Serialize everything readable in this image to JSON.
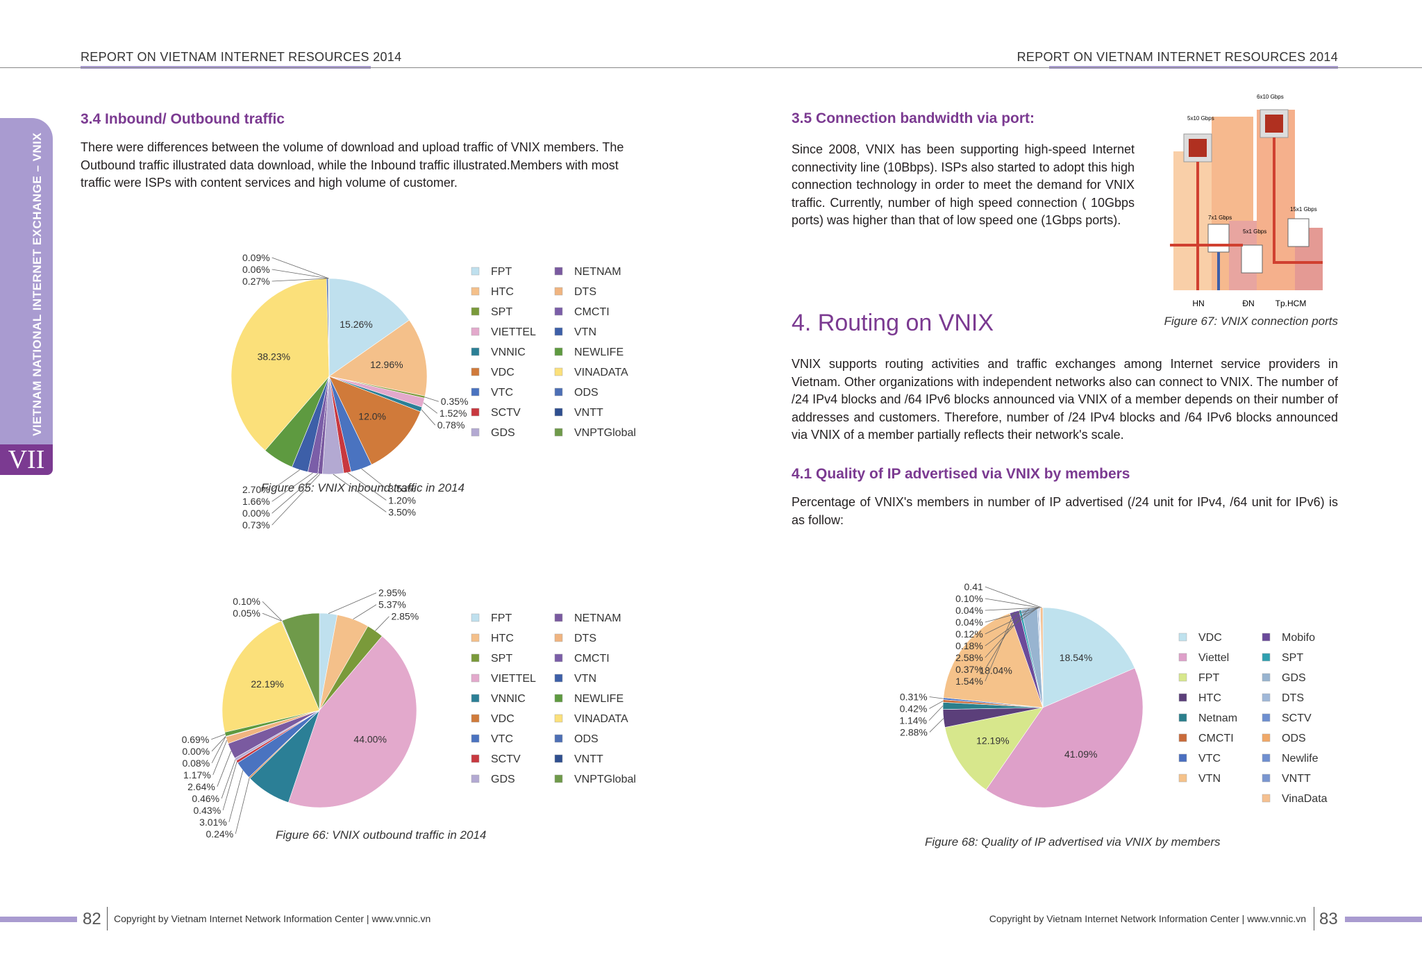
{
  "header": {
    "left": "REPORT ON  VIETNAM INTERNET  RESOURCES 2014",
    "right": "REPORT ON  VIETNAM INTERNET  RESOURCES 2014"
  },
  "sidebar": {
    "title": "VIETNAM NATIONAL INTERNET EXCHANGE – VNIX",
    "chapter": "VII"
  },
  "left_page": {
    "heading": "3.4 Inbound/ Outbound traffic",
    "paragraph": "There were differences between the volume of download and upload traffic of VNIX members. The Outbound traffic illustrated data download, while the Inbound traffic illustrated.Members with most traffic were ISPs with content services and high volume of customer.",
    "figure_65_caption": "Figure 65: VNIX inbound traffic in 2014",
    "figure_66_caption": "Figure 66:  VNIX outbound traffic in 2014"
  },
  "right_page": {
    "heading_35": "3.5 Connection bandwidth via port:",
    "paragraph_35": "Since 2008, VNIX has been supporting high-speed Internet connectivity line (10Bbps). ISPs also started to adopt this high connection technology in order to meet the demand for VNIX traffic. Currently, number  of high speed connection ( 10Gbps ports) was higher than that of low speed one (1Gbps ports).",
    "figure_67_caption": "Figure 67: VNIX connection ports",
    "heading_4": "4. Routing on VNIX",
    "paragraph_4": "VNIX supports routing activities and traffic exchanges among Internet service providers in Vietnam. Other organizations with independent networks also can connect to VNIX. The number of /24 IPv4 blocks and /64 IPv6 blocks announced via VNIX of a member depends on their number of addresses and customers. Therefore, number of /24 IPv4 blocks and /64 IPv6 blocks announced via VNIX of a member partially reflects their network's scale.",
    "heading_41": "4.1 Quality of IP advertised via VNIX by members",
    "paragraph_41": "Percentage of VNIX's members in number of IP advertised (/24 unit for IPv4, /64 unit for IPv6) is as follow:",
    "figure_68_caption": "Figure 68: Quality of IP advertised via VNIX by members"
  },
  "diagram": {
    "ports": [
      "5x10 Gbps",
      "6x10 Gbps",
      "7x1 Gbps",
      "5x1 Gbps",
      "15x1 Gbps"
    ],
    "cities": [
      "HN",
      "ĐN",
      "Tp.HCM"
    ]
  },
  "footer": {
    "left_page_number": "82",
    "left_copyright": "Copyright by Vietnam Internet Network Information Center  | www.vnnic.vn",
    "right_copyright": "Copyright by Vietnam Internet Network Information Center  | www.vnnic.vn",
    "right_page_number": "83"
  },
  "chart_data": [
    {
      "type": "pie",
      "categories": [
        "FPT",
        "HTC",
        "SPT",
        "VIETTEL",
        "VNNIC",
        "VDC",
        "VTC",
        "SCTV",
        "GDS",
        "NETNAM",
        "DTS",
        "CMCTI",
        "VTN",
        "NEWLIFE",
        "VINADATA",
        "ODS",
        "VNTT",
        "VNPTGlobal"
      ],
      "values": [
        15.26,
        12.96,
        0.35,
        1.52,
        0.78,
        12.0,
        3.53,
        1.2,
        3.5,
        0.73,
        0.0,
        1.66,
        2.7,
        5.16,
        38.23,
        0.27,
        0.06,
        0.09
      ],
      "value_labels": [
        "15.26%",
        "12.96%",
        "0.35%",
        "1.52%",
        "0.78%",
        "12.0%",
        "3.53%",
        "1.20%",
        "3.50%",
        "0.73%",
        "0.00%",
        "1.66%",
        "2.70%",
        null,
        "38.23%",
        "0.27%",
        "0.06%",
        "0.09%"
      ],
      "colors": [
        "#bfe0ee",
        "#f4c08a",
        "#7a9a3a",
        "#e3a9cc",
        "#2b7f96",
        "#d07a3a",
        "#4a73c0",
        "#c8383f",
        "#b3a9d2",
        "#7a5aa0",
        "#f0b480",
        "#7b5ea8",
        "#3d5fa8",
        "#5e9a40",
        "#fbe07a",
        "#4d6fb5",
        "#2f4f8f",
        "#6f9a4a"
      ]
    },
    {
      "type": "pie",
      "categories": [
        "FPT",
        "HTC",
        "SPT",
        "VIETTEL",
        "VNNIC",
        "VDC",
        "VTC",
        "SCTV",
        "GDS",
        "NETNAM",
        "DTS",
        "CMCTI",
        "VTN",
        "NEWLIFE",
        "VINADATA",
        "ODS",
        "VNTT",
        "VNPTGlobal"
      ],
      "values": [
        2.95,
        5.37,
        2.85,
        44.0,
        7.5,
        0.24,
        3.01,
        0.43,
        0.46,
        2.64,
        1.17,
        0.08,
        0.0,
        0.69,
        22.19,
        0.05,
        0.1,
        6.27
      ],
      "value_labels": [
        "2.95%",
        "5.37%",
        "2.85%",
        "44.00%",
        null,
        "0.24%",
        "3.01%",
        "0.43%",
        "0.46%",
        "2.64%",
        "1.17%",
        "0.08%",
        "0.00%",
        "0.69%",
        "22.19%",
        "0.05%",
        "0.10%",
        null
      ],
      "colors": [
        "#bfe0ee",
        "#f4c08a",
        "#7a9a3a",
        "#e3a9cc",
        "#2b7f96",
        "#d07a3a",
        "#4a73c0",
        "#c8383f",
        "#b3a9d2",
        "#7a5aa0",
        "#f0b480",
        "#7b5ea8",
        "#3d5fa8",
        "#5e9a40",
        "#fbe07a",
        "#4d6fb5",
        "#2f4f8f",
        "#6f9a4a"
      ]
    },
    {
      "type": "pie",
      "categories": [
        "VDC",
        "Viettel",
        "FPT",
        "HTC",
        "Netnam",
        "CMCTI",
        "VTC",
        "VTN",
        "Mobifo",
        "SPT",
        "GDS",
        "DTS",
        "SCTV",
        "ODS",
        "Newlife",
        "VNTT",
        "VinaData"
      ],
      "values": [
        18.54,
        41.09,
        12.19,
        2.88,
        1.14,
        0.42,
        0.31,
        18.04,
        1.54,
        0.37,
        2.58,
        0.18,
        0.12,
        0.04,
        0.04,
        0.1,
        0.41
      ],
      "value_labels": [
        "18.54%",
        "41.09%",
        "12.19%",
        "2.88%",
        "1.14%",
        "0.42%",
        "0.31%",
        "18.04%",
        "1.54%",
        "0.37%",
        "2.58%",
        "0.18%",
        "0.12%",
        "0.04%",
        "0.04%",
        "0.10%",
        "0.41"
      ],
      "colors": [
        "#bfe2ee",
        "#dea0c9",
        "#d7e78c",
        "#5b3f7a",
        "#2b7f8c",
        "#c96b3a",
        "#4a6fc0",
        "#f5c28a",
        "#6b4a9a",
        "#2fa0b0",
        "#98b4d0",
        "#a0b8d8",
        "#6e8fd0",
        "#f0a868",
        "#6f8fd0",
        "#7a96d0",
        "#f5c090"
      ]
    }
  ]
}
